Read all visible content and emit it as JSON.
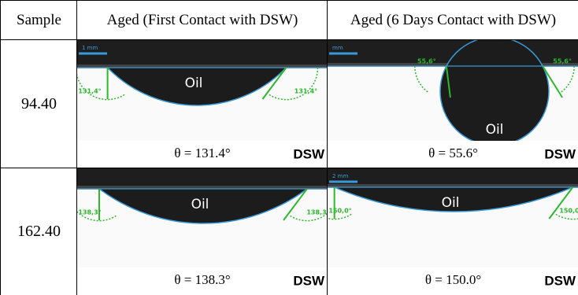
{
  "table": {
    "header": [
      "Sample",
      "Aged (First Contact with DSW)",
      "Aged (6 Days Contact with DSW)"
    ],
    "rows": [
      {
        "sample": "94.40",
        "cells": [
          {
            "scale": "1 mm",
            "angle_left": "131,4°",
            "angle_right": "131,4°",
            "drop_label": "Oil",
            "caption": "θ  = 131.4°",
            "fluid": "DSW"
          },
          {
            "scale": "mm",
            "angle_left": "55,6°",
            "angle_right": "55,6°",
            "drop_label": "Oil",
            "caption": "θ  = 55.6°",
            "fluid": "DSW"
          }
        ]
      },
      {
        "sample": "162.40",
        "cells": [
          {
            "angle_left": "138,3°",
            "angle_right": "138,3°",
            "drop_label": "Oil",
            "caption": "θ  = 138.3°",
            "fluid": "DSW"
          },
          {
            "scale": "2 mm",
            "angle_left": "150,0°",
            "angle_right": "150,0",
            "drop_label": "Oil",
            "caption": "θ  = 150.0°",
            "fluid": "DSW"
          }
        ]
      }
    ]
  }
}
